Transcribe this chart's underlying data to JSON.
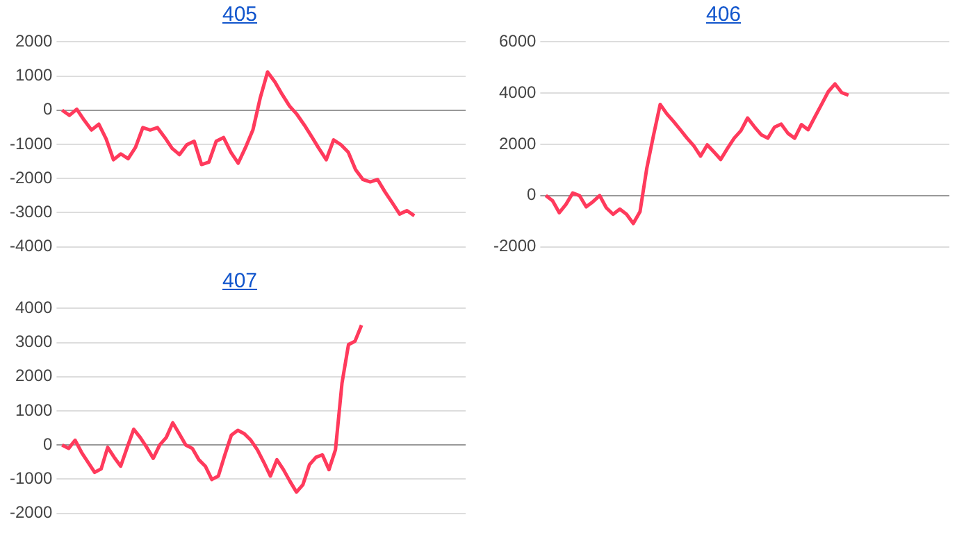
{
  "chart_data": [
    {
      "type": "line",
      "title": "405",
      "color": "#ff3a5c",
      "marker": "none",
      "grid": "y",
      "tick_labels": "y",
      "ylim": [
        -4000,
        2000
      ],
      "yticks": [
        -4000,
        -3000,
        -2000,
        -1000,
        0,
        1000,
        2000
      ],
      "categories": [
        null,
        null,
        null,
        null,
        null,
        null,
        null,
        null,
        null,
        null,
        null,
        null,
        null,
        null,
        null,
        null,
        null,
        null,
        null,
        null,
        null,
        null,
        null,
        null,
        null,
        null,
        null,
        null,
        null,
        null,
        null,
        null,
        null,
        null,
        null,
        null,
        null,
        null,
        null,
        null,
        null,
        null,
        null,
        null,
        null,
        null,
        null,
        null,
        null,
        null,
        null,
        null,
        null,
        null,
        null,
        null
      ],
      "values": [
        0,
        -150,
        30,
        -290,
        -580,
        -410,
        -840,
        -1450,
        -1280,
        -1420,
        -1090,
        -510,
        -580,
        -510,
        -800,
        -1120,
        -1300,
        -1010,
        -910,
        -1590,
        -1520,
        -910,
        -800,
        -1230,
        -1550,
        -1090,
        -580,
        360,
        1120,
        830,
        460,
        120,
        -120,
        -430,
        -770,
        -1120,
        -1450,
        -870,
        -1010,
        -1230,
        -1740,
        -2030,
        -2100,
        -2030,
        -2390,
        -2710,
        -3040,
        -2940,
        -3090,
        null,
        null,
        null,
        null,
        null,
        null,
        null
      ]
    },
    {
      "type": "line",
      "title": "406",
      "color": "#ff3a5c",
      "marker": "none",
      "grid": "y",
      "tick_labels": "y",
      "ylim": [
        -2000,
        6000
      ],
      "yticks": [
        -2000,
        0,
        2000,
        4000,
        6000
      ],
      "categories": [
        null,
        null,
        null,
        null,
        null,
        null,
        null,
        null,
        null,
        null,
        null,
        null,
        null,
        null,
        null,
        null,
        null,
        null,
        null,
        null,
        null,
        null,
        null,
        null,
        null,
        null,
        null,
        null,
        null,
        null,
        null,
        null,
        null,
        null,
        null,
        null,
        null,
        null,
        null,
        null,
        null,
        null,
        null,
        null,
        null,
        null,
        null,
        null,
        null,
        null,
        null,
        null,
        null,
        null,
        null,
        null,
        null,
        null,
        null,
        null,
        null
      ],
      "values": [
        0,
        -200,
        -670,
        -340,
        100,
        0,
        -440,
        -240,
        0,
        -480,
        -730,
        -530,
        -730,
        -1090,
        -630,
        1050,
        2340,
        3560,
        3190,
        2890,
        2570,
        2240,
        1940,
        1540,
        1980,
        1700,
        1410,
        1840,
        2240,
        2530,
        3030,
        2690,
        2380,
        2240,
        2670,
        2790,
        2430,
        2240,
        2770,
        2570,
        3070,
        3560,
        4060,
        4360,
        4020,
        3920,
        null,
        null,
        null,
        null,
        null,
        null,
        null,
        null,
        null,
        null,
        null,
        null,
        null,
        null,
        null
      ]
    },
    {
      "type": "line",
      "title": "407",
      "color": "#ff3a5c",
      "marker": "none",
      "grid": "y",
      "tick_labels": "y",
      "ylim": [
        -2000,
        4000
      ],
      "yticks": [
        -2000,
        -1000,
        0,
        1000,
        2000,
        3000,
        4000
      ],
      "categories": [
        null,
        null,
        null,
        null,
        null,
        null,
        null,
        null,
        null,
        null,
        null,
        null,
        null,
        null,
        null,
        null,
        null,
        null,
        null,
        null,
        null,
        null,
        null,
        null,
        null,
        null,
        null,
        null,
        null,
        null,
        null,
        null,
        null,
        null,
        null,
        null,
        null,
        null,
        null,
        null,
        null,
        null,
        null,
        null,
        null,
        null,
        null,
        null,
        null,
        null,
        null,
        null,
        null,
        null,
        null,
        null,
        null,
        null,
        null,
        null,
        null,
        null,
        null
      ],
      "values": [
        0,
        -100,
        140,
        -220,
        -510,
        -800,
        -700,
        -70,
        -360,
        -620,
        -70,
        460,
        220,
        -70,
        -390,
        0,
        220,
        650,
        330,
        0,
        -100,
        -430,
        -620,
        -1010,
        -910,
        -290,
        290,
        430,
        330,
        140,
        -140,
        -510,
        -910,
        -430,
        -720,
        -1060,
        -1380,
        -1160,
        -580,
        -360,
        -290,
        -720,
        -140,
        1810,
        2940,
        3040,
        3510,
        null,
        null,
        null,
        null,
        null,
        null,
        null,
        null,
        null,
        null,
        null,
        null,
        null,
        null,
        null,
        null
      ]
    }
  ]
}
